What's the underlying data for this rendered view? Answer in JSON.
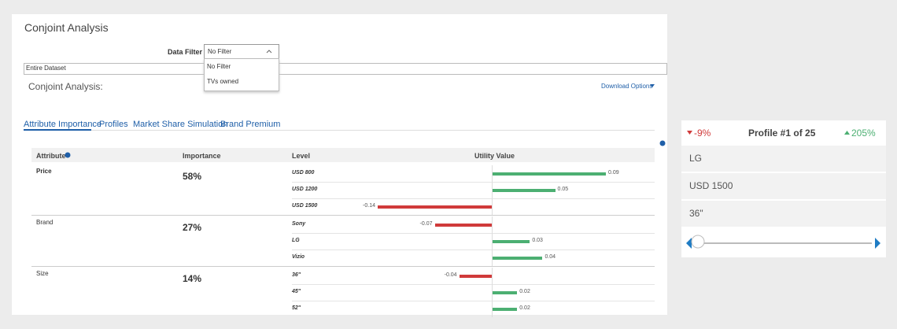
{
  "header": {
    "title": "Conjoint Analysis"
  },
  "filter": {
    "label": "Data Filter",
    "selected": "No Filter",
    "options": [
      "No Filter",
      "TVs owned"
    ],
    "dataset": "Entire Dataset"
  },
  "section": {
    "title": "Conjoint Analysis:",
    "download": "Download Options"
  },
  "tabs": [
    "Attribute Importance",
    "Profiles",
    "Market Share Simulation",
    "Brand Premium"
  ],
  "table": {
    "columns": [
      "Attribute",
      "Importance",
      "Level",
      "Utility Value"
    ],
    "rows": [
      {
        "attribute": "Price",
        "importance": "58%",
        "levels": [
          {
            "name": "USD 800",
            "utility": 0.09,
            "color": "#4caf72"
          },
          {
            "name": "USD 1200",
            "utility": 0.05,
            "color": "#4caf72"
          },
          {
            "name": "USD 1500",
            "utility": -0.14,
            "color": "#d03a3a"
          }
        ]
      },
      {
        "attribute": "Brand",
        "importance": "27%",
        "levels": [
          {
            "name": "Sony",
            "utility": -0.07,
            "color": "#d03a3a"
          },
          {
            "name": "LG",
            "utility": 0.03,
            "color": "#4caf72"
          },
          {
            "name": "Vizio",
            "utility": 0.04,
            "color": "#4caf72"
          }
        ]
      },
      {
        "attribute": "Size",
        "importance": "14%",
        "levels": [
          {
            "name": "36\"",
            "utility": -0.04,
            "color": "#d03a3a"
          },
          {
            "name": "45\"",
            "utility": 0.02,
            "color": "#4caf72"
          },
          {
            "name": "52\"",
            "utility": 0.02,
            "color": "#4caf72"
          }
        ]
      }
    ]
  },
  "profile_card": {
    "low": "-9%",
    "title": "Profile #1 of 25",
    "high": "205%",
    "attributes": [
      "LG",
      "USD 1500",
      "36\""
    ]
  }
}
